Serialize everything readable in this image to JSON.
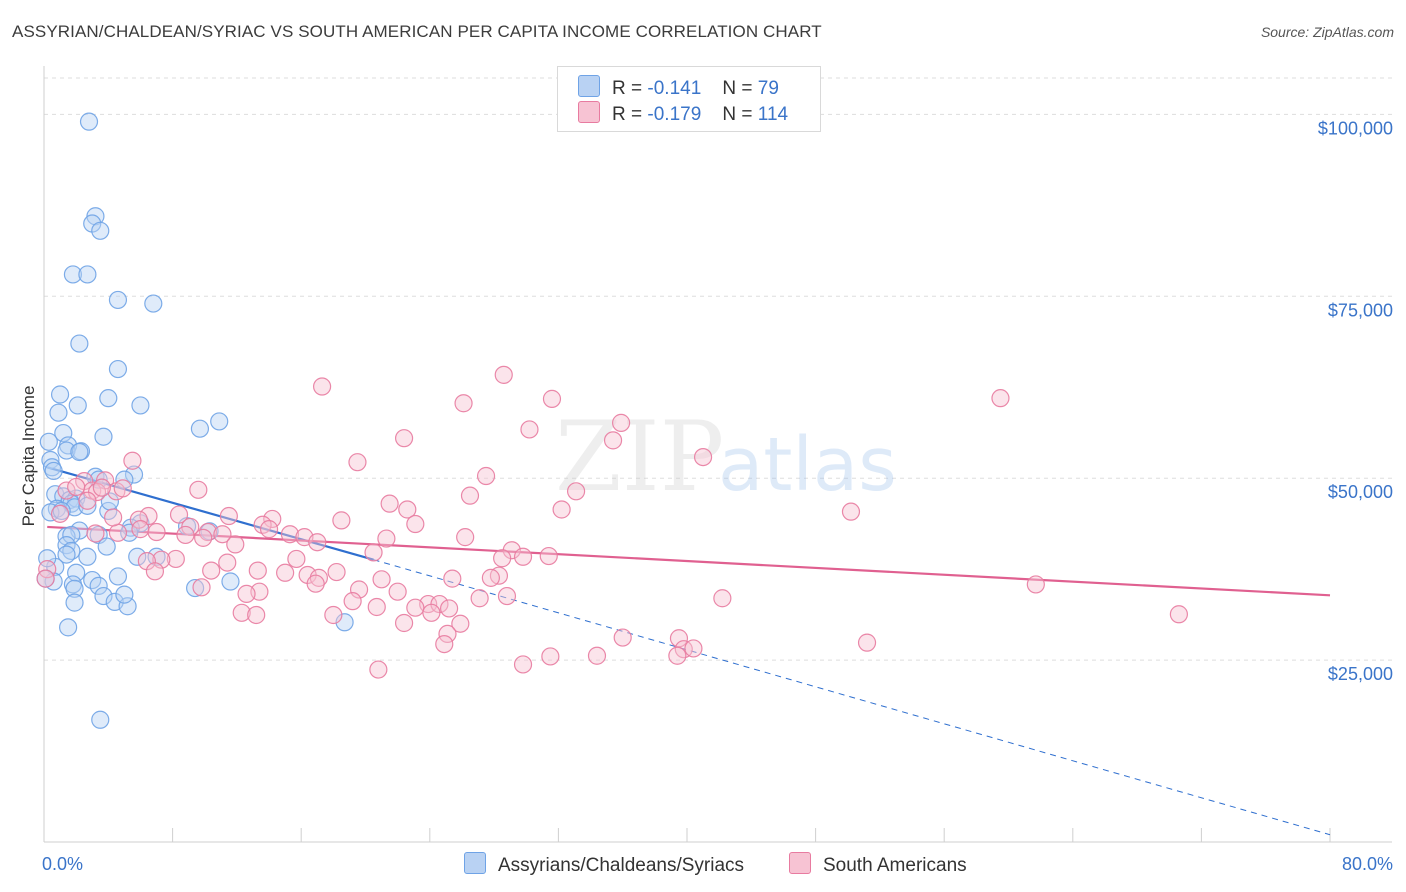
{
  "header": {
    "title": "ASSYRIAN/CHALDEAN/SYRIAC VS SOUTH AMERICAN PER CAPITA INCOME CORRELATION CHART",
    "source": "Source: ZipAtlas.com"
  },
  "watermark": {
    "zip": "ZIP",
    "atlas": "atlas"
  },
  "colors": {
    "blue": "#6fa3e6",
    "blue_fill": "#b9d2f3",
    "blue_line": "#2f6fcf",
    "pink": "#e87ba0",
    "pink_fill": "#f7c3d3",
    "pink_line": "#e06090",
    "axis_label": "#3a74c9",
    "grid": "#dddddd"
  },
  "legend": {
    "rows": [
      {
        "r_label": "R =",
        "r_value": "-0.141",
        "n_label": "N =",
        "n_value": "79"
      },
      {
        "r_label": "R =",
        "r_value": "-0.179",
        "n_label": "N =",
        "n_value": "114"
      }
    ]
  },
  "bottom_legend": {
    "series_a": "Assyrians/Chaldeans/Syriacs",
    "series_b": "South Americans"
  },
  "chart_data": {
    "type": "scatter",
    "title": "ASSYRIAN/CHALDEAN/SYRIAC VS SOUTH AMERICAN PER CAPITA INCOME CORRELATION CHART",
    "xlabel": "",
    "ylabel": "Per Capita Income",
    "xlim": [
      0,
      80
    ],
    "ylim": [
      0,
      105000
    ],
    "x_tick_labels": [
      "0.0%",
      "80.0%"
    ],
    "y_ticks": [
      25000,
      50000,
      75000,
      100000
    ],
    "y_tick_labels": [
      "$25,000",
      "$50,000",
      "$75,000",
      "$100,000"
    ],
    "series": [
      {
        "name": "Assyrians/Chaldeans/Syriacs",
        "color": "blue",
        "r": -0.141,
        "n": 79,
        "trend": {
          "x0": 0.2,
          "y0": 51500,
          "x1": 20.5,
          "y1": 38800,
          "dash_to_x": 80,
          "dash_to_y": 1000
        },
        "points": [
          [
            2.8,
            99000
          ],
          [
            3.2,
            86000
          ],
          [
            3.0,
            85000
          ],
          [
            3.5,
            84000
          ],
          [
            1.8,
            78000
          ],
          [
            2.7,
            78000
          ],
          [
            4.6,
            74500
          ],
          [
            6.8,
            74000
          ],
          [
            2.2,
            68500
          ],
          [
            4.6,
            65000
          ],
          [
            1.0,
            61500
          ],
          [
            4.0,
            61000
          ],
          [
            2.1,
            60000
          ],
          [
            6.0,
            60000
          ],
          [
            0.9,
            59000
          ],
          [
            10.9,
            57800
          ],
          [
            9.7,
            56800
          ],
          [
            1.2,
            56200
          ],
          [
            3.7,
            55700
          ],
          [
            0.3,
            55000
          ],
          [
            1.5,
            54500
          ],
          [
            1.4,
            53800
          ],
          [
            2.3,
            53700
          ],
          [
            2.2,
            53600
          ],
          [
            0.4,
            52500
          ],
          [
            0.5,
            51500
          ],
          [
            0.6,
            51000
          ],
          [
            5.6,
            50500
          ],
          [
            3.2,
            50200
          ],
          [
            3.4,
            49800
          ],
          [
            5.0,
            49800
          ],
          [
            0.7,
            47800
          ],
          [
            1.2,
            47500
          ],
          [
            1.6,
            47000
          ],
          [
            2.0,
            47200
          ],
          [
            1.7,
            46500
          ],
          [
            1.9,
            46000
          ],
          [
            2.7,
            46200
          ],
          [
            0.8,
            45800
          ],
          [
            0.4,
            45300
          ],
          [
            1.1,
            45500
          ],
          [
            4.0,
            45500
          ],
          [
            4.1,
            46800
          ],
          [
            6.0,
            43800
          ],
          [
            5.4,
            43200
          ],
          [
            3.4,
            42200
          ],
          [
            2.2,
            42800
          ],
          [
            1.4,
            42000
          ],
          [
            1.7,
            42200
          ],
          [
            5.3,
            42500
          ],
          [
            1.4,
            40800
          ],
          [
            8.9,
            43400
          ],
          [
            10.3,
            42700
          ],
          [
            1.7,
            40000
          ],
          [
            3.9,
            40600
          ],
          [
            7.0,
            39200
          ],
          [
            5.8,
            39200
          ],
          [
            1.4,
            39500
          ],
          [
            2.7,
            39200
          ],
          [
            0.7,
            37800
          ],
          [
            2.0,
            37000
          ],
          [
            4.6,
            36500
          ],
          [
            0.6,
            35800
          ],
          [
            3.0,
            36000
          ],
          [
            3.4,
            35200
          ],
          [
            1.8,
            35400
          ],
          [
            1.9,
            34800
          ],
          [
            11.6,
            35800
          ],
          [
            9.4,
            34900
          ],
          [
            3.7,
            33800
          ],
          [
            4.4,
            33000
          ],
          [
            5.2,
            32400
          ],
          [
            1.9,
            32900
          ],
          [
            18.7,
            30200
          ],
          [
            1.5,
            29500
          ],
          [
            0.2,
            39000
          ],
          [
            0.1,
            36200
          ],
          [
            3.5,
            16800
          ],
          [
            5.0,
            34000
          ]
        ]
      },
      {
        "name": "South Americans",
        "color": "pink",
        "r": -0.179,
        "n": 114,
        "trend": {
          "x0": 0.2,
          "y0": 43300,
          "x1": 80,
          "y1": 33900
        },
        "points": [
          [
            17.3,
            62600
          ],
          [
            28.6,
            64200
          ],
          [
            26.1,
            60300
          ],
          [
            31.6,
            60900
          ],
          [
            59.5,
            61000
          ],
          [
            35.9,
            57600
          ],
          [
            30.2,
            56700
          ],
          [
            22.4,
            55500
          ],
          [
            35.4,
            55200
          ],
          [
            19.5,
            52200
          ],
          [
            41.0,
            52900
          ],
          [
            5.5,
            52400
          ],
          [
            27.5,
            50300
          ],
          [
            3.8,
            49700
          ],
          [
            2.5,
            49600
          ],
          [
            3.0,
            48300
          ],
          [
            9.6,
            48400
          ],
          [
            1.4,
            48300
          ],
          [
            4.5,
            48200
          ],
          [
            33.1,
            48200
          ],
          [
            26.5,
            47600
          ],
          [
            2.0,
            48800
          ],
          [
            4.9,
            48600
          ],
          [
            3.3,
            48100
          ],
          [
            21.5,
            46500
          ],
          [
            22.6,
            45700
          ],
          [
            32.2,
            45700
          ],
          [
            50.2,
            45400
          ],
          [
            8.4,
            45000
          ],
          [
            1.0,
            45100
          ],
          [
            11.5,
            44800
          ],
          [
            6.5,
            44800
          ],
          [
            14.2,
            44400
          ],
          [
            18.5,
            44200
          ],
          [
            5.9,
            44300
          ],
          [
            23.1,
            43700
          ],
          [
            13.6,
            43600
          ],
          [
            9.1,
            43300
          ],
          [
            14.0,
            43000
          ],
          [
            6.0,
            43000
          ],
          [
            10.2,
            42600
          ],
          [
            15.3,
            42300
          ],
          [
            11.1,
            42300
          ],
          [
            16.2,
            41900
          ],
          [
            3.2,
            42400
          ],
          [
            7.0,
            42600
          ],
          [
            4.6,
            42500
          ],
          [
            8.8,
            42200
          ],
          [
            26.2,
            41900
          ],
          [
            9.9,
            41800
          ],
          [
            11.9,
            40900
          ],
          [
            17.0,
            41200
          ],
          [
            21.3,
            41700
          ],
          [
            29.1,
            40100
          ],
          [
            31.4,
            39300
          ],
          [
            20.5,
            39800
          ],
          [
            29.8,
            39200
          ],
          [
            28.5,
            39000
          ],
          [
            8.2,
            38900
          ],
          [
            15.7,
            38900
          ],
          [
            7.3,
            38800
          ],
          [
            6.4,
            38600
          ],
          [
            11.4,
            38400
          ],
          [
            10.4,
            37300
          ],
          [
            13.3,
            37300
          ],
          [
            6.9,
            37200
          ],
          [
            18.2,
            37100
          ],
          [
            15.0,
            37000
          ],
          [
            16.4,
            36700
          ],
          [
            28.3,
            36600
          ],
          [
            17.1,
            36300
          ],
          [
            21.0,
            36100
          ],
          [
            25.4,
            36200
          ],
          [
            27.8,
            36300
          ],
          [
            61.7,
            35400
          ],
          [
            16.9,
            35500
          ],
          [
            9.8,
            35000
          ],
          [
            13.4,
            34400
          ],
          [
            19.6,
            34700
          ],
          [
            22.0,
            34400
          ],
          [
            27.1,
            33500
          ],
          [
            28.8,
            33800
          ],
          [
            12.6,
            34100
          ],
          [
            42.2,
            33500
          ],
          [
            19.2,
            33100
          ],
          [
            23.9,
            32700
          ],
          [
            24.6,
            32700
          ],
          [
            20.7,
            32300
          ],
          [
            25.2,
            32100
          ],
          [
            23.1,
            32200
          ],
          [
            24.1,
            31500
          ],
          [
            12.3,
            31500
          ],
          [
            13.2,
            31200
          ],
          [
            18.0,
            31200
          ],
          [
            70.6,
            31300
          ],
          [
            22.4,
            30100
          ],
          [
            25.9,
            30000
          ],
          [
            25.1,
            28600
          ],
          [
            36.0,
            28100
          ],
          [
            24.9,
            27200
          ],
          [
            39.5,
            28000
          ],
          [
            51.2,
            27400
          ],
          [
            39.8,
            26500
          ],
          [
            40.4,
            26600
          ],
          [
            39.4,
            25600
          ],
          [
            31.5,
            25500
          ],
          [
            34.4,
            25600
          ],
          [
            29.8,
            24400
          ],
          [
            20.8,
            23700
          ],
          [
            0.2,
            37500
          ],
          [
            0.1,
            36200
          ],
          [
            3.6,
            48700
          ],
          [
            2.7,
            46900
          ],
          [
            4.3,
            44600
          ]
        ]
      }
    ]
  }
}
